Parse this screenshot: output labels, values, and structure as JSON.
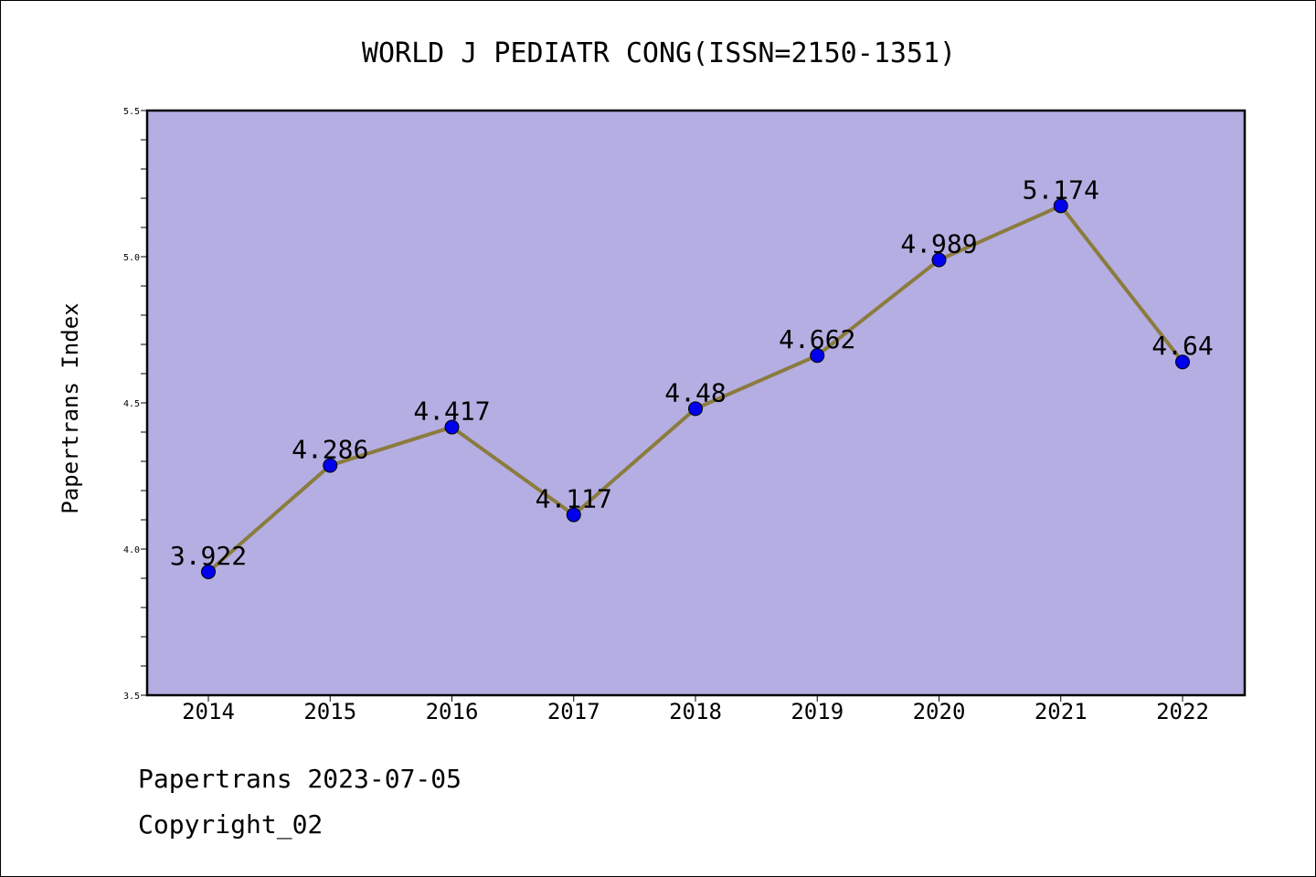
{
  "chart_data": {
    "type": "line",
    "title": "WORLD J PEDIATR CONG(ISSN=2150-1351)",
    "xlabel": "",
    "ylabel": "Papertrans Index",
    "categories": [
      "2014",
      "2015",
      "2016",
      "2017",
      "2018",
      "2019",
      "2020",
      "2021",
      "2022"
    ],
    "values": [
      3.922,
      4.286,
      4.417,
      4.117,
      4.48,
      4.662,
      4.989,
      5.174,
      4.64
    ],
    "data_labels": [
      "3.922",
      "4.286",
      "4.417",
      "4.117",
      "4.48",
      "4.662",
      "4.989",
      "5.174",
      "4.64"
    ],
    "ylim": [
      3.5,
      5.5
    ],
    "yticks": [
      "3.5",
      "4.0",
      "4.5",
      "5.0",
      "5.5"
    ],
    "grid": false,
    "colors": {
      "plot_background": "#b4aee2",
      "line": "#8b7b3e",
      "marker": "#0000ee"
    }
  },
  "footer": {
    "line1": "Papertrans 2023-07-05",
    "line2": "Copyright_02"
  }
}
